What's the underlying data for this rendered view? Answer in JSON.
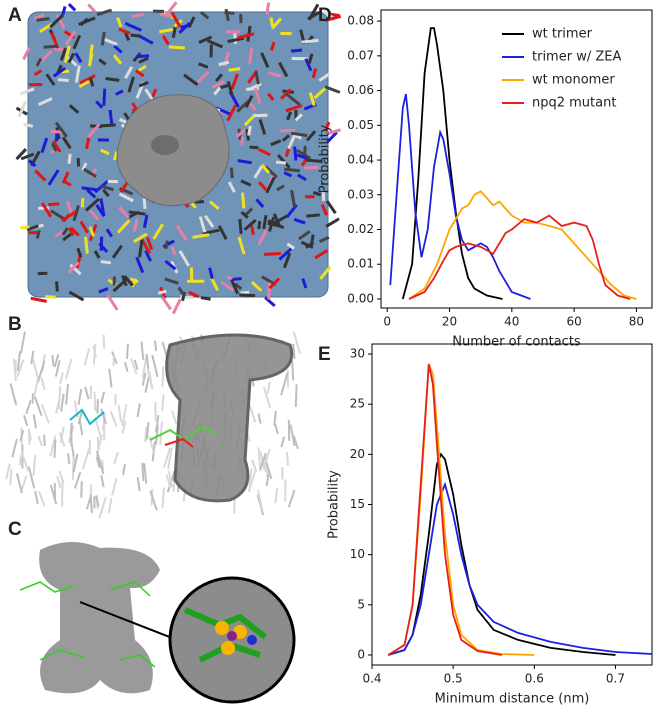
{
  "panel_labels": [
    "A",
    "B",
    "C",
    "D",
    "E"
  ],
  "chart_data": [
    {
      "type": "line",
      "xlabel": "Number of contacts",
      "ylabel": "Probability",
      "xlim": [
        -2,
        85
      ],
      "xticks": [
        0,
        20,
        40,
        60,
        80
      ],
      "ylim": [
        -0.0026,
        0.0832
      ],
      "yticks": [
        {
          "value": 0,
          "label": "0.00"
        },
        {
          "value": 0.01,
          "label": "0.01"
        },
        {
          "value": 0.02,
          "label": "0.02"
        },
        {
          "value": 0.03,
          "label": "0.03"
        },
        {
          "value": 0.04,
          "label": "0.04"
        },
        {
          "value": 0.05,
          "label": "0.05"
        },
        {
          "value": 0.06,
          "label": "0.06"
        },
        {
          "value": 0.07,
          "label": "0.07"
        },
        {
          "value": 0.08,
          "label": "0.08"
        }
      ],
      "legend": "upper right",
      "series": [
        {
          "name": "wt trimer",
          "color": "#000000",
          "x": [
            5,
            8,
            10,
            12,
            14,
            15,
            16,
            18,
            20,
            22,
            24,
            26,
            28,
            32,
            37
          ],
          "values": [
            0,
            0.01,
            0.035,
            0.065,
            0.078,
            0.078,
            0.073,
            0.06,
            0.04,
            0.025,
            0.013,
            0.006,
            0.003,
            0.001,
            0
          ]
        },
        {
          "name": "trimer w/ ZEA",
          "color": "#1f1fe0",
          "x": [
            1,
            3,
            5,
            6,
            7,
            9,
            11,
            13,
            15,
            17,
            18,
            20,
            22,
            24,
            26,
            28,
            30,
            32,
            34,
            36,
            38,
            40,
            43,
            46
          ],
          "values": [
            0.004,
            0.03,
            0.055,
            0.059,
            0.05,
            0.025,
            0.012,
            0.02,
            0.038,
            0.048,
            0.046,
            0.036,
            0.024,
            0.017,
            0.014,
            0.015,
            0.016,
            0.015,
            0.012,
            0.008,
            0.005,
            0.002,
            0.001,
            0
          ]
        },
        {
          "name": "wt monomer",
          "color": "#ffa500",
          "x": [
            7,
            12,
            16,
            18,
            20,
            22,
            24,
            26,
            28,
            30,
            32,
            34,
            36,
            38,
            40,
            44,
            48,
            52,
            56,
            60,
            64,
            68,
            72,
            76,
            80
          ],
          "values": [
            0,
            0.003,
            0.01,
            0.015,
            0.02,
            0.023,
            0.026,
            0.027,
            0.03,
            0.031,
            0.029,
            0.027,
            0.028,
            0.026,
            0.024,
            0.022,
            0.022,
            0.021,
            0.02,
            0.016,
            0.012,
            0.008,
            0.004,
            0.001,
            0
          ]
        },
        {
          "name": "npq2 mutant",
          "color": "#e8201a",
          "x": [
            7,
            12,
            15,
            18,
            20,
            22,
            26,
            30,
            34,
            36,
            38,
            40,
            44,
            48,
            52,
            56,
            60,
            64,
            66,
            68,
            70,
            74,
            78
          ],
          "values": [
            0,
            0.002,
            0.006,
            0.011,
            0.014,
            0.015,
            0.016,
            0.015,
            0.013,
            0.016,
            0.019,
            0.02,
            0.023,
            0.022,
            0.024,
            0.021,
            0.022,
            0.021,
            0.017,
            0.01,
            0.004,
            0.001,
            0
          ]
        }
      ]
    },
    {
      "type": "line",
      "xlabel": "Minimum distance (nm)",
      "ylabel": "Probability",
      "xlim": [
        0.4,
        0.745
      ],
      "xticks": [
        0.4,
        0.5,
        0.6,
        0.7
      ],
      "ylim": [
        -1,
        31
      ],
      "yticks": [
        0,
        5,
        10,
        15,
        20,
        25,
        30
      ],
      "series": [
        {
          "color": "#000000",
          "x": [
            0.42,
            0.44,
            0.45,
            0.46,
            0.47,
            0.48,
            0.485,
            0.49,
            0.5,
            0.51,
            0.52,
            0.53,
            0.55,
            0.58,
            0.62,
            0.66,
            0.7
          ],
          "values": [
            0,
            0.5,
            2,
            6,
            12,
            19,
            20,
            19.5,
            16,
            11,
            7,
            4.5,
            2.5,
            1.5,
            0.7,
            0.3,
            0
          ]
        },
        {
          "color": "#1f1fe0",
          "x": [
            0.42,
            0.44,
            0.45,
            0.46,
            0.47,
            0.48,
            0.49,
            0.5,
            0.51,
            0.52,
            0.53,
            0.55,
            0.58,
            0.62,
            0.66,
            0.7,
            0.745
          ],
          "values": [
            0,
            0.5,
            2,
            5,
            10,
            15,
            17,
            14,
            10,
            7,
            5,
            3.3,
            2.2,
            1.3,
            0.7,
            0.3,
            0.1
          ]
        },
        {
          "color": "#ffa500",
          "x": [
            0.42,
            0.44,
            0.45,
            0.46,
            0.47,
            0.475,
            0.48,
            0.49,
            0.5,
            0.51,
            0.53,
            0.56,
            0.6
          ],
          "values": [
            0,
            1,
            5,
            16,
            29,
            28,
            23,
            12,
            5,
            2,
            0.5,
            0.1,
            0
          ]
        },
        {
          "color": "#e8201a",
          "x": [
            0.42,
            0.44,
            0.45,
            0.46,
            0.47,
            0.475,
            0.48,
            0.49,
            0.5,
            0.51,
            0.53,
            0.56
          ],
          "values": [
            0,
            1,
            5,
            17,
            29,
            27,
            21,
            10,
            4,
            1.5,
            0.4,
            0
          ]
        }
      ]
    }
  ]
}
